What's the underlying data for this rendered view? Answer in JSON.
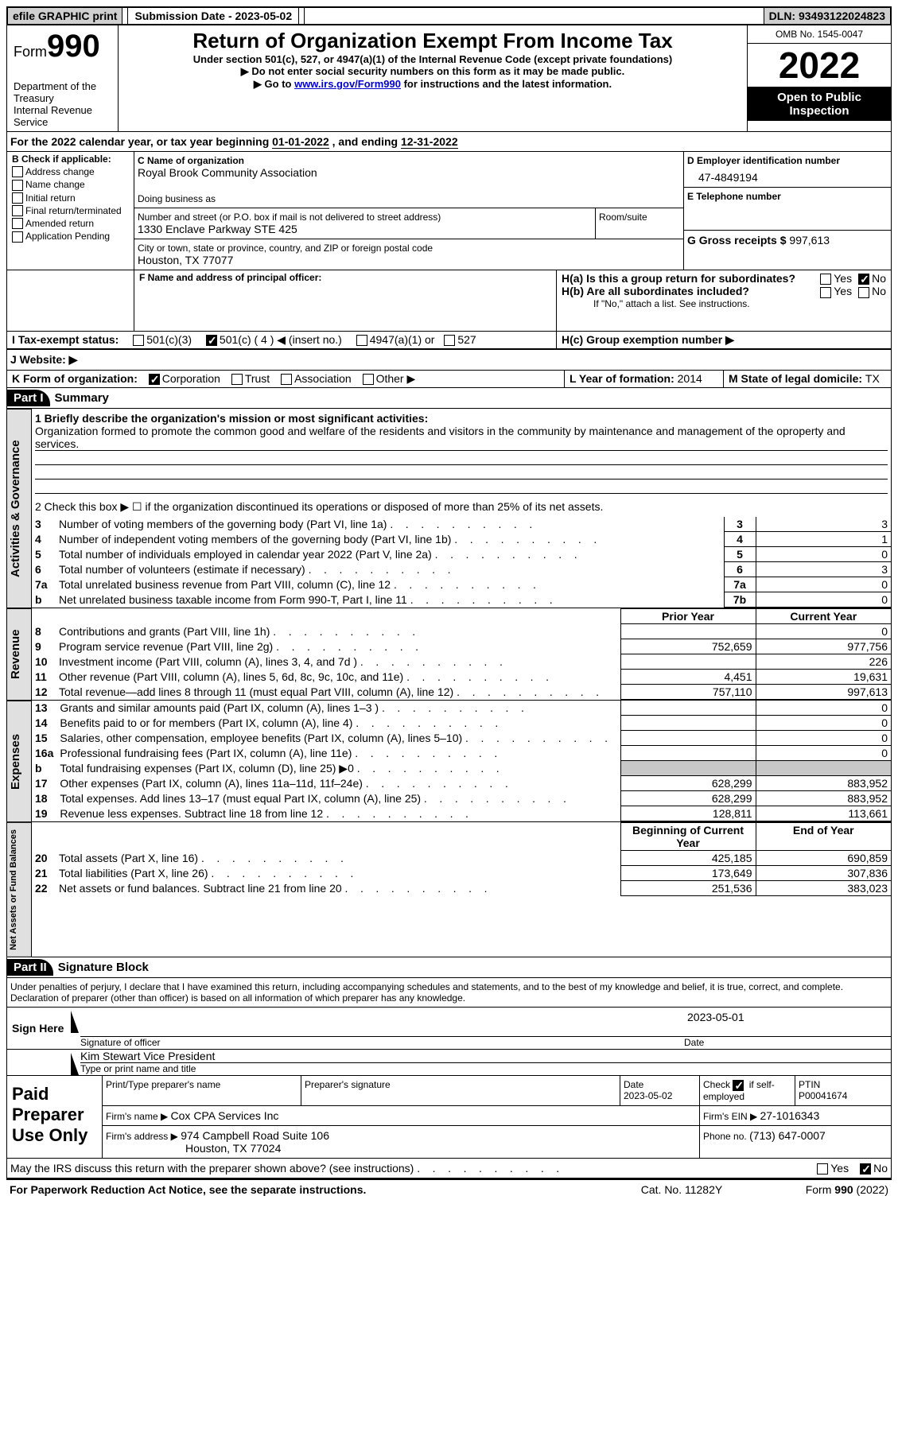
{
  "topbar": {
    "efile": "efile GRAPHIC print",
    "submission_label": "Submission Date - ",
    "submission_date": "2023-05-02",
    "dln_label": "DLN: ",
    "dln": "93493122024823"
  },
  "header": {
    "form_prefix": "Form",
    "form_number": "990",
    "dept": "Department of the Treasury",
    "irs": "Internal Revenue Service",
    "title": "Return of Organization Exempt From Income Tax",
    "sub1": "Under section 501(c), 527, or 4947(a)(1) of the Internal Revenue Code (except private foundations)",
    "sub2": "Do not enter social security numbers on this form as it may be made public.",
    "sub3_prefix": "Go to ",
    "sub3_link": "www.irs.gov/Form990",
    "sub3_suffix": " for instructions and the latest information.",
    "omb": "OMB No. 1545-0047",
    "year": "2022",
    "open": "Open to Public Inspection"
  },
  "sectionA": {
    "text": "For the 2022 calendar year, or tax year beginning ",
    "begin": "01-01-2022",
    "mid": " , and ending ",
    "end": "12-31-2022"
  },
  "sectionB": {
    "label": "B Check if applicable:",
    "items": [
      "Address change",
      "Name change",
      "Initial return",
      "Final return/terminated",
      "Amended return",
      "Application Pending"
    ]
  },
  "sectionC": {
    "name_label": "C Name of organization",
    "name": "Royal Brook Community Association",
    "dba_label": "Doing business as",
    "addr_label": "Number and street (or P.O. box if mail is not delivered to street address)",
    "room_label": "Room/suite",
    "addr": "1330 Enclave Parkway STE 425",
    "city_label": "City or town, state or province, country, and ZIP or foreign postal code",
    "city": "Houston, TX  77077"
  },
  "sectionD": {
    "label": "D Employer identification number",
    "val": "47-4849194"
  },
  "sectionE": {
    "label": "E Telephone number"
  },
  "sectionG": {
    "label": "G Gross receipts $ ",
    "val": "997,613"
  },
  "sectionF": {
    "label": "F  Name and address of principal officer:"
  },
  "sectionH": {
    "a_label": "H(a)  Is this a group return for subordinates?",
    "b_label": "H(b)  Are all subordinates included?",
    "b_note": "If \"No,\" attach a list. See instructions.",
    "c_label": "H(c)  Group exemption number ▶",
    "yes": "Yes",
    "no": "No"
  },
  "sectionI": {
    "label": "I  Tax-exempt status:",
    "opt1": "501(c)(3)",
    "opt2": "501(c) ( 4 ) ◀ (insert no.)",
    "opt3": "4947(a)(1) or",
    "opt4": "527"
  },
  "sectionJ": {
    "label": "J  Website: ▶"
  },
  "sectionK": {
    "label": "K Form of organization:",
    "opts": [
      "Corporation",
      "Trust",
      "Association",
      "Other ▶"
    ]
  },
  "sectionL": {
    "label": "L Year of formation: ",
    "val": "2014"
  },
  "sectionM": {
    "label": "M State of legal domicile: ",
    "val": "TX"
  },
  "part1": {
    "num": "Part I",
    "title": "Summary"
  },
  "summary": {
    "line1_label": "1  Briefly describe the organization's mission or most significant activities:",
    "line1_text": "Organization formed to promote the common good and welfare of the residents and visitors in the community by maintenance and management of the oproperty and services.",
    "line2": "2  Check this box ▶ ☐ if the organization discontinued its operations or disposed of more than 25% of its net assets.",
    "rows": [
      {
        "n": "3",
        "t": "Number of voting members of the governing body (Part VI, line 1a)",
        "box": "3",
        "v": "3"
      },
      {
        "n": "4",
        "t": "Number of independent voting members of the governing body (Part VI, line 1b)",
        "box": "4",
        "v": "1"
      },
      {
        "n": "5",
        "t": "Total number of individuals employed in calendar year 2022 (Part V, line 2a)",
        "box": "5",
        "v": "0"
      },
      {
        "n": "6",
        "t": "Total number of volunteers (estimate if necessary)",
        "box": "6",
        "v": "3"
      },
      {
        "n": "7a",
        "t": "Total unrelated business revenue from Part VIII, column (C), line 12",
        "box": "7a",
        "v": "0"
      },
      {
        "n": "b",
        "t": "Net unrelated business taxable income from Form 990-T, Part I, line 11",
        "box": "7b",
        "v": "0"
      }
    ],
    "col_prior": "Prior Year",
    "col_current": "Current Year",
    "rev_rows": [
      {
        "n": "8",
        "t": "Contributions and grants (Part VIII, line 1h)",
        "p": "",
        "c": "0"
      },
      {
        "n": "9",
        "t": "Program service revenue (Part VIII, line 2g)",
        "p": "752,659",
        "c": "977,756"
      },
      {
        "n": "10",
        "t": "Investment income (Part VIII, column (A), lines 3, 4, and 7d )",
        "p": "",
        "c": "226"
      },
      {
        "n": "11",
        "t": "Other revenue (Part VIII, column (A), lines 5, 6d, 8c, 9c, 10c, and 11e)",
        "p": "4,451",
        "c": "19,631"
      },
      {
        "n": "12",
        "t": "Total revenue—add lines 8 through 11 (must equal Part VIII, column (A), line 12)",
        "p": "757,110",
        "c": "997,613"
      }
    ],
    "exp_rows": [
      {
        "n": "13",
        "t": "Grants and similar amounts paid (Part IX, column (A), lines 1–3 )",
        "p": "",
        "c": "0"
      },
      {
        "n": "14",
        "t": "Benefits paid to or for members (Part IX, column (A), line 4)",
        "p": "",
        "c": "0"
      },
      {
        "n": "15",
        "t": "Salaries, other compensation, employee benefits (Part IX, column (A), lines 5–10)",
        "p": "",
        "c": "0"
      },
      {
        "n": "16a",
        "t": "Professional fundraising fees (Part IX, column (A), line 11e)",
        "p": "",
        "c": "0"
      },
      {
        "n": "b",
        "t": "Total fundraising expenses (Part IX, column (D), line 25) ▶0",
        "p": "shaded",
        "c": "shaded"
      },
      {
        "n": "17",
        "t": "Other expenses (Part IX, column (A), lines 11a–11d, 11f–24e)",
        "p": "628,299",
        "c": "883,952"
      },
      {
        "n": "18",
        "t": "Total expenses. Add lines 13–17 (must equal Part IX, column (A), line 25)",
        "p": "628,299",
        "c": "883,952"
      },
      {
        "n": "19",
        "t": "Revenue less expenses. Subtract line 18 from line 12",
        "p": "128,811",
        "c": "113,661"
      }
    ],
    "col_begin": "Beginning of Current Year",
    "col_end": "End of Year",
    "net_rows": [
      {
        "n": "20",
        "t": "Total assets (Part X, line 16)",
        "p": "425,185",
        "c": "690,859"
      },
      {
        "n": "21",
        "t": "Total liabilities (Part X, line 26)",
        "p": "173,649",
        "c": "307,836"
      },
      {
        "n": "22",
        "t": "Net assets or fund balances. Subtract line 21 from line 20",
        "p": "251,536",
        "c": "383,023"
      }
    ]
  },
  "vtabs": {
    "act": "Activities & Governance",
    "rev": "Revenue",
    "exp": "Expenses",
    "net": "Net Assets or Fund Balances"
  },
  "part2": {
    "num": "Part II",
    "title": "Signature Block"
  },
  "sig": {
    "pen": "Under penalties of perjury, I declare that I have examined this return, including accompanying schedules and statements, and to the best of my knowledge and belief, it is true, correct, and complete. Declaration of preparer (other than officer) is based on all information of which preparer has any knowledge.",
    "sign_here": "Sign Here",
    "sig_officer": "Signature of officer",
    "date": "Date",
    "date_val": "2023-05-01",
    "name_title": "Kim Stewart  Vice President",
    "type_name": "Type or print name and title",
    "paid": "Paid Preparer Use Only",
    "prep_name_label": "Print/Type preparer's name",
    "prep_sig_label": "Preparer's signature",
    "prep_date_label": "Date",
    "prep_date": "2023-05-02",
    "check_label": "Check ☑ if self-employed",
    "ptin_label": "PTIN",
    "ptin": "P00041674",
    "firm_name_label": "Firm's name    ▶ ",
    "firm_name": "Cox CPA Services Inc",
    "firm_ein_label": "Firm's EIN ▶ ",
    "firm_ein": "27-1016343",
    "firm_addr_label": "Firm's address ▶ ",
    "firm_addr": "974 Campbell Road Suite 106",
    "firm_city": "Houston, TX  77024",
    "phone_label": "Phone no. ",
    "phone": "(713) 647-0007"
  },
  "footer": {
    "discuss": "May the IRS discuss this return with the preparer shown above? (see instructions)",
    "yes": "Yes",
    "no": "No",
    "paperwork": "For Paperwork Reduction Act Notice, see the separate instructions.",
    "cat": "Cat. No. 11282Y",
    "form": "Form 990 (2022)"
  }
}
